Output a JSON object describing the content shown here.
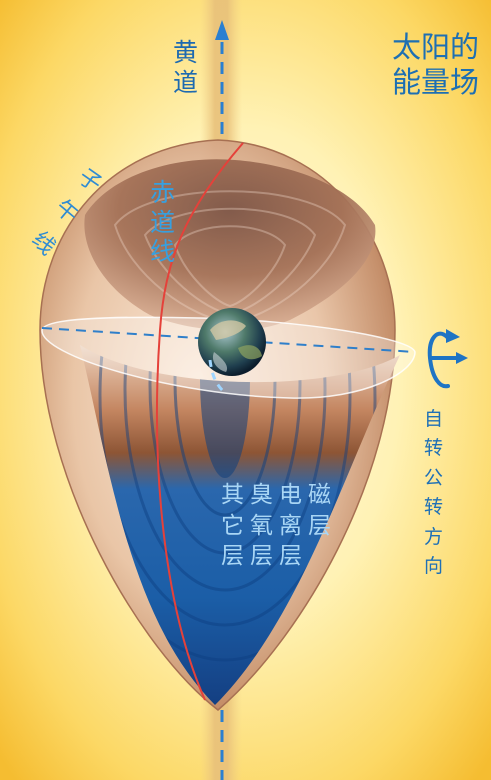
{
  "labels": {
    "title_line1": "太阳的",
    "title_line2": "能量场",
    "ecliptic": [
      "黄",
      "道"
    ],
    "meridian": [
      "子",
      "午",
      "线"
    ],
    "equator": [
      "赤",
      "道",
      "线"
    ],
    "rotation": [
      "自",
      "转",
      "公",
      "转",
      "方",
      "向"
    ],
    "layers": [
      [
        "磁",
        "层"
      ],
      [
        "电",
        "离",
        "层"
      ],
      [
        "臭",
        "氧",
        "层"
      ],
      [
        "其",
        "它",
        "层"
      ]
    ]
  },
  "colors": {
    "background_glow": "#fff3b3",
    "background_edge": "#f7c237",
    "shell_brown": "#9b5a3a",
    "ocean_blue": "#1a5da8",
    "label_blue": "#1d6fb3",
    "meridian_red": "#e5413a",
    "axis_blue": "#2a7fd1"
  },
  "icons": [
    "rotation-arrow-icon",
    "earth-icon"
  ]
}
